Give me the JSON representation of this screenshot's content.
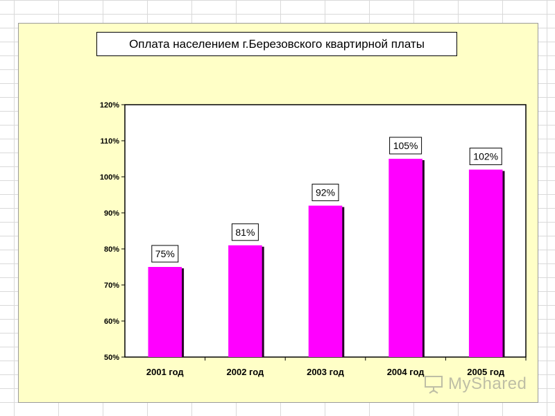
{
  "chart_data": {
    "type": "bar",
    "title": "Оплата населением г.Березовского квартирной платы",
    "categories": [
      "2001 год",
      "2002 год",
      "2003 год",
      "2004 год",
      "2005 год"
    ],
    "values": [
      75,
      81,
      92,
      105,
      102
    ],
    "data_labels": [
      "75%",
      "81%",
      "92%",
      "105%",
      "102%"
    ],
    "ylim": [
      50,
      120
    ],
    "yticks": [
      50,
      60,
      70,
      80,
      90,
      100,
      110,
      120
    ],
    "ytick_labels": [
      "50%",
      "60%",
      "70%",
      "80%",
      "90%",
      "100%",
      "110%",
      "120%"
    ],
    "xlabel": "",
    "ylabel": "",
    "grid": false,
    "legend": "none",
    "colors": {
      "bar": "#ff00ff",
      "bar_shadow": "#2a002a",
      "plot_bg": "#ffffff",
      "chart_bg": "#ffffc7"
    }
  },
  "watermark": {
    "text": "MyShared",
    "icon": "presentation-board-icon"
  }
}
